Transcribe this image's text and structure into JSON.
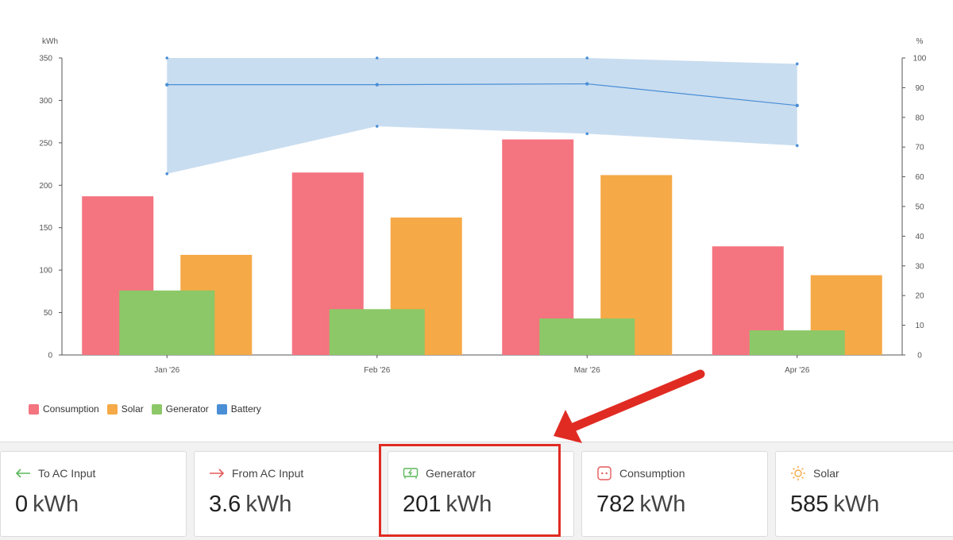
{
  "chart_data": {
    "type": "bar",
    "categories": [
      "Jan '26",
      "Feb '26",
      "Mar '26",
      "Apr '26"
    ],
    "ylabel": "kWh",
    "ylabel_right": "%",
    "ylim": [
      0,
      350
    ],
    "ylim_right": [
      0,
      100
    ],
    "yticks": [
      0,
      50,
      100,
      150,
      200,
      250,
      300,
      350
    ],
    "yticks_right": [
      0,
      10,
      20,
      30,
      40,
      50,
      60,
      70,
      80,
      90,
      100
    ],
    "series": [
      {
        "name": "Consumption",
        "color": "#f47480",
        "values": [
          187,
          215,
          254,
          128
        ]
      },
      {
        "name": "Solar",
        "color": "#f5a947",
        "values": [
          118,
          162,
          212,
          94
        ]
      },
      {
        "name": "Generator",
        "color": "#8cc868",
        "values": [
          76,
          54,
          43,
          29
        ]
      }
    ],
    "battery": {
      "name": "Battery",
      "color": "#4a8fd6",
      "band_color": "#c9ddf0",
      "axis": "right",
      "avg": [
        91,
        91,
        91.3,
        84
      ],
      "max": [
        100,
        100,
        100,
        98
      ],
      "min": [
        61,
        77,
        74.5,
        70.5
      ]
    },
    "legend": [
      "Consumption",
      "Solar",
      "Generator",
      "Battery"
    ],
    "legend_position": "bottom-left",
    "grid": false
  },
  "stats": [
    {
      "label": "To AC Input",
      "value": "0",
      "unit": "kWh",
      "icon": "arrow-left-icon",
      "color": "#5bb85b"
    },
    {
      "label": "From AC Input",
      "value": "3.6",
      "unit": "kWh",
      "icon": "arrow-right-icon",
      "color": "#e55a5a"
    },
    {
      "label": "Generator",
      "value": "201",
      "unit": "kWh",
      "icon": "generator-icon",
      "color": "#5bb85b"
    },
    {
      "label": "Consumption",
      "value": "782",
      "unit": "kWh",
      "icon": "outlet-icon",
      "color": "#e55a5a"
    },
    {
      "label": "Solar",
      "value": "585",
      "unit": "kWh",
      "icon": "sun-icon",
      "color": "#f5a947"
    }
  ],
  "annotation": {
    "arrow_color": "#e02b22",
    "highlight_target": "Generator"
  }
}
